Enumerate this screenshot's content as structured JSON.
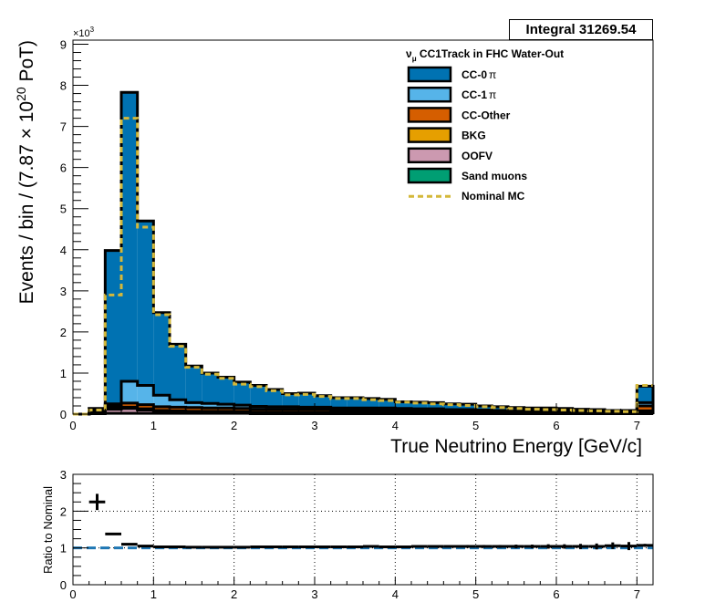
{
  "stat_box": {
    "label": "Integral",
    "value": "31269.54"
  },
  "chart_data": [
    {
      "type": "histogram-stack",
      "title": "ν_μ CC1Track in FHC Water-Out",
      "title_main": "ν",
      "title_sub": "μ",
      "title_rest": " CC1Track in FHC Water-Out",
      "xlabel": "True Neutrino Energy [GeV/c]",
      "ylabel": "Events / bin / (7.87  × 10²⁰ PoT)",
      "ylabel_pre": "Events / bin / (7.87  ×",
      "ylabel_base": " 10",
      "ylabel_exp": "20",
      "ylabel_post": " PoT)",
      "y_multiplier": "×10³",
      "y_mult_base": "×10",
      "y_mult_exp": "3",
      "xlim": [
        0,
        7.2
      ],
      "ylim": [
        0,
        9.1
      ],
      "x_ticks": [
        "0",
        "1",
        "2",
        "3",
        "4",
        "5",
        "6",
        "7"
      ],
      "y_ticks": [
        "0",
        "1",
        "2",
        "3",
        "4",
        "5",
        "6",
        "7",
        "8",
        "9"
      ],
      "bin_edges": [
        0,
        0.2,
        0.4,
        0.6,
        0.8,
        1.0,
        1.2,
        1.4,
        1.6,
        1.8,
        2.0,
        2.2,
        2.4,
        2.6,
        2.8,
        3.0,
        3.2,
        3.4,
        3.6,
        3.8,
        4.0,
        4.2,
        4.4,
        4.6,
        4.8,
        5.0,
        5.2,
        5.4,
        5.6,
        5.8,
        6.0,
        6.2,
        6.4,
        6.6,
        6.8,
        7.0,
        7.2
      ],
      "legend_position": "top-right",
      "series": [
        {
          "name": "Sand muons",
          "color": "#009e73",
          "values": [
            0,
            0.01,
            0.02,
            0.02,
            0.02,
            0.02,
            0.02,
            0.02,
            0.02,
            0.02,
            0.02,
            0.01,
            0.01,
            0.01,
            0.01,
            0.01,
            0.01,
            0.01,
            0.01,
            0.01,
            0.01,
            0.01,
            0.01,
            0.01,
            0.01,
            0.01,
            0.01,
            0.01,
            0.01,
            0.01,
            0.01,
            0.01,
            0.01,
            0.01,
            0.01,
            0.01
          ]
        },
        {
          "name": "OOFV",
          "color": "#cc99b0",
          "values": [
            0,
            0.03,
            0.1,
            0.12,
            0.08,
            0.05,
            0.04,
            0.03,
            0.03,
            0.03,
            0.02,
            0.02,
            0.02,
            0.02,
            0.02,
            0.02,
            0.02,
            0.02,
            0.02,
            0.02,
            0.02,
            0.02,
            0.02,
            0.01,
            0.01,
            0.01,
            0.01,
            0.01,
            0.01,
            0.01,
            0.01,
            0.01,
            0.01,
            0.01,
            0.01,
            0.05
          ]
        },
        {
          "name": "BKG",
          "color": "#e69f00",
          "values": [
            0,
            0.01,
            0.02,
            0.03,
            0.03,
            0.02,
            0.02,
            0.02,
            0.02,
            0.02,
            0.02,
            0.02,
            0.02,
            0.02,
            0.02,
            0.02,
            0.02,
            0.02,
            0.02,
            0.02,
            0.02,
            0.02,
            0.02,
            0.01,
            0.01,
            0.01,
            0.01,
            0.01,
            0.01,
            0.01,
            0.01,
            0.01,
            0.01,
            0.01,
            0.01,
            0.02
          ]
        },
        {
          "name": "CC-Other",
          "color": "#d55e00",
          "values": [
            0,
            0.01,
            0.06,
            0.1,
            0.1,
            0.09,
            0.09,
            0.09,
            0.08,
            0.08,
            0.08,
            0.07,
            0.07,
            0.07,
            0.07,
            0.07,
            0.06,
            0.06,
            0.06,
            0.06,
            0.06,
            0.05,
            0.05,
            0.05,
            0.05,
            0.05,
            0.04,
            0.04,
            0.04,
            0.04,
            0.04,
            0.03,
            0.03,
            0.03,
            0.03,
            0.12
          ]
        },
        {
          "name": "CC-1π",
          "color": "#56b4e9",
          "values": [
            0,
            0.04,
            0.05,
            0.53,
            0.47,
            0.28,
            0.18,
            0.12,
            0.11,
            0.09,
            0.08,
            0.07,
            0.06,
            0.06,
            0.05,
            0.05,
            0.04,
            0.04,
            0.04,
            0.04,
            0.03,
            0.03,
            0.03,
            0.03,
            0.03,
            0.02,
            0.02,
            0.02,
            0.02,
            0.02,
            0.02,
            0.02,
            0.02,
            0.01,
            0.01,
            0.08
          ]
        },
        {
          "name": "CC-0π",
          "color": "#0072b2",
          "values": [
            0,
            0.04,
            3.73,
            7.03,
            4.0,
            2.01,
            1.35,
            0.89,
            0.74,
            0.66,
            0.56,
            0.51,
            0.42,
            0.32,
            0.34,
            0.28,
            0.25,
            0.25,
            0.23,
            0.21,
            0.16,
            0.16,
            0.15,
            0.14,
            0.13,
            0.1,
            0.09,
            0.07,
            0.06,
            0.06,
            0.05,
            0.04,
            0.03,
            0.02,
            0.02,
            0.4
          ]
        }
      ],
      "nominal": {
        "name": "Nominal MC",
        "color": "#d4b83a",
        "values": [
          0,
          0.1,
          2.9,
          7.2,
          4.55,
          2.42,
          1.65,
          1.14,
          0.97,
          0.87,
          0.73,
          0.67,
          0.57,
          0.47,
          0.48,
          0.43,
          0.38,
          0.38,
          0.35,
          0.33,
          0.29,
          0.27,
          0.25,
          0.23,
          0.21,
          0.18,
          0.16,
          0.14,
          0.12,
          0.11,
          0.1,
          0.09,
          0.08,
          0.07,
          0.06,
          0.7
        ]
      },
      "legend_entries": [
        {
          "label_main": "CC-0",
          "label_greek": "π",
          "kind": "fill",
          "series": 5
        },
        {
          "label_main": "CC-1",
          "label_greek": "π",
          "kind": "fill",
          "series": 4
        },
        {
          "label_main": "CC-Other",
          "label_greek": "",
          "kind": "fill",
          "series": 3
        },
        {
          "label_main": "BKG",
          "label_greek": "",
          "kind": "fill",
          "series": 2
        },
        {
          "label_main": "OOFV",
          "label_greek": "",
          "kind": "fill",
          "series": 1
        },
        {
          "label_main": "Sand muons",
          "label_greek": "",
          "kind": "fill",
          "series": 0
        },
        {
          "label_main": "Nominal MC",
          "label_greek": "",
          "kind": "line",
          "series": -1
        }
      ]
    },
    {
      "type": "ratio-errorbar",
      "ylabel": "Ratio to Nominal",
      "xlim": [
        0,
        7.2
      ],
      "ylim": [
        0,
        3
      ],
      "x_ticks": [
        "0",
        "1",
        "2",
        "3",
        "4",
        "5",
        "6",
        "7"
      ],
      "y_ticks": [
        "0",
        "1",
        "2",
        "3"
      ],
      "reference_value": 1,
      "reference_color": "#1f77b4",
      "x": [
        0.3,
        0.5,
        0.7,
        0.9,
        1.1,
        1.3,
        1.5,
        1.7,
        1.9,
        2.1,
        2.3,
        2.5,
        2.7,
        2.9,
        3.1,
        3.3,
        3.5,
        3.7,
        3.9,
        4.1,
        4.3,
        4.5,
        4.7,
        4.9,
        5.1,
        5.3,
        5.5,
        5.7,
        5.9,
        6.1,
        6.3,
        6.5,
        6.7,
        6.9,
        7.1
      ],
      "values": [
        2.25,
        1.38,
        1.1,
        1.05,
        1.03,
        1.03,
        1.02,
        1.02,
        1.02,
        1.02,
        1.03,
        1.03,
        1.03,
        1.03,
        1.03,
        1.03,
        1.03,
        1.04,
        1.03,
        1.03,
        1.04,
        1.04,
        1.04,
        1.04,
        1.04,
        1.04,
        1.04,
        1.04,
        1.04,
        1.04,
        1.04,
        1.04,
        1.06,
        1.05,
        1.07
      ],
      "errors": [
        0.22,
        0.0,
        0.0,
        0.0,
        0.0,
        0.0,
        0.0,
        0.0,
        0.0,
        0.01,
        0.01,
        0.01,
        0.01,
        0.02,
        0.02,
        0.02,
        0.02,
        0.02,
        0.02,
        0.03,
        0.03,
        0.03,
        0.03,
        0.04,
        0.04,
        0.04,
        0.05,
        0.05,
        0.06,
        0.06,
        0.07,
        0.08,
        0.09,
        0.11,
        0.04
      ]
    }
  ]
}
